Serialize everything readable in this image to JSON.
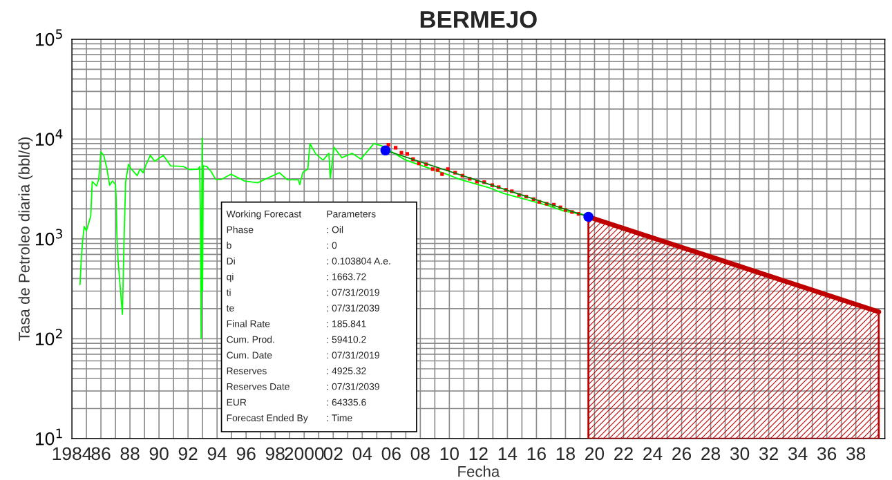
{
  "chart_data": {
    "type": "line",
    "title": "BERMEJO",
    "xlabel": "Fecha",
    "ylabel": "Tasa de Petroleo diaria (bbl/d)",
    "log": "y",
    "grid": true,
    "legend": false,
    "xlim": [
      1984,
      2040
    ],
    "ylim": [
      10,
      100000
    ],
    "xticks": [
      {
        "value": 1984,
        "label": "1984"
      },
      {
        "value": 1985,
        "label": null
      },
      {
        "value": 1986,
        "label": "86"
      },
      {
        "value": 1987,
        "label": null
      },
      {
        "value": 1988,
        "label": "88"
      },
      {
        "value": 1989,
        "label": null
      },
      {
        "value": 1990,
        "label": "90"
      },
      {
        "value": 1991,
        "label": null
      },
      {
        "value": 1992,
        "label": "92"
      },
      {
        "value": 1993,
        "label": null
      },
      {
        "value": 1994,
        "label": "94"
      },
      {
        "value": 1995,
        "label": null
      },
      {
        "value": 1996,
        "label": "96"
      },
      {
        "value": 1997,
        "label": null
      },
      {
        "value": 1998,
        "label": "98"
      },
      {
        "value": 1999,
        "label": null
      },
      {
        "value": 2000,
        "label": "2000"
      },
      {
        "value": 2001,
        "label": null
      },
      {
        "value": 2002,
        "label": "02"
      },
      {
        "value": 2003,
        "label": null
      },
      {
        "value": 2004,
        "label": "04"
      },
      {
        "value": 2005,
        "label": null
      },
      {
        "value": 2006,
        "label": "06"
      },
      {
        "value": 2007,
        "label": null
      },
      {
        "value": 2008,
        "label": "08"
      },
      {
        "value": 2009,
        "label": null
      },
      {
        "value": 2010,
        "label": "10"
      },
      {
        "value": 2011,
        "label": null
      },
      {
        "value": 2012,
        "label": "12"
      },
      {
        "value": 2013,
        "label": null
      },
      {
        "value": 2014,
        "label": "14"
      },
      {
        "value": 2015,
        "label": null
      },
      {
        "value": 2016,
        "label": "16"
      },
      {
        "value": 2017,
        "label": null
      },
      {
        "value": 2018,
        "label": "18"
      },
      {
        "value": 2019,
        "label": null
      },
      {
        "value": 2020,
        "label": "20"
      },
      {
        "value": 2021,
        "label": null
      },
      {
        "value": 2022,
        "label": "22"
      },
      {
        "value": 2023,
        "label": null
      },
      {
        "value": 2024,
        "label": "24"
      },
      {
        "value": 2025,
        "label": null
      },
      {
        "value": 2026,
        "label": "26"
      },
      {
        "value": 2027,
        "label": null
      },
      {
        "value": 2028,
        "label": "28"
      },
      {
        "value": 2029,
        "label": null
      },
      {
        "value": 2030,
        "label": "30"
      },
      {
        "value": 2031,
        "label": null
      },
      {
        "value": 2032,
        "label": "32"
      },
      {
        "value": 2033,
        "label": null
      },
      {
        "value": 2034,
        "label": "34"
      },
      {
        "value": 2035,
        "label": null
      },
      {
        "value": 2036,
        "label": "36"
      },
      {
        "value": 2037,
        "label": null
      },
      {
        "value": 2038,
        "label": "38"
      },
      {
        "value": 2039,
        "label": null
      }
    ],
    "yticks": [
      {
        "value": 10,
        "label": "10$^{1}$"
      },
      {
        "value": 20,
        "label": null
      },
      {
        "value": 30,
        "label": null
      },
      {
        "value": 40,
        "label": null
      },
      {
        "value": 50,
        "label": null
      },
      {
        "value": 60,
        "label": null
      },
      {
        "value": 70,
        "label": null
      },
      {
        "value": 80,
        "label": null
      },
      {
        "value": 90,
        "label": null
      },
      {
        "value": 100,
        "label": "10$^{2}$"
      },
      {
        "value": 200,
        "label": null
      },
      {
        "value": 300,
        "label": null
      },
      {
        "value": 400,
        "label": null
      },
      {
        "value": 500,
        "label": null
      },
      {
        "value": 600,
        "label": null
      },
      {
        "value": 700,
        "label": null
      },
      {
        "value": 800,
        "label": null
      },
      {
        "value": 900,
        "label": null
      },
      {
        "value": 1000,
        "label": "10$^{3}$"
      },
      {
        "value": 2000,
        "label": null
      },
      {
        "value": 3000,
        "label": null
      },
      {
        "value": 4000,
        "label": null
      },
      {
        "value": 5000,
        "label": null
      },
      {
        "value": 6000,
        "label": null
      },
      {
        "value": 7000,
        "label": null
      },
      {
        "value": 8000,
        "label": null
      },
      {
        "value": 9000,
        "label": null
      },
      {
        "value": 10000,
        "label": "10$^{4}$"
      },
      {
        "value": 20000,
        "label": null
      },
      {
        "value": 30000,
        "label": null
      },
      {
        "value": 40000,
        "label": null
      },
      {
        "value": 50000,
        "label": null
      },
      {
        "value": 60000,
        "label": null
      },
      {
        "value": 70000,
        "label": null
      },
      {
        "value": 80000,
        "label": null
      },
      {
        "value": 90000,
        "label": null
      },
      {
        "value": 100000,
        "label": "10$^{5}$"
      }
    ],
    "series": [
      {
        "color": "#00ff00",
        "marker": "none",
        "x": [
          1984.56,
          1984.65,
          1984.75,
          1984.85,
          1985.0,
          1985.3,
          1985.4,
          1985.7,
          1985.85,
          1986.0,
          1986.2,
          1986.4,
          1986.6,
          1986.8,
          1987.0,
          1987.05,
          1987.1,
          1987.18,
          1987.48,
          1987.6,
          1987.7,
          1987.9,
          1988.1,
          1988.5,
          1988.7,
          1988.9,
          1989.1,
          1989.4,
          1989.7,
          1990.3,
          1990.8,
          1991.7,
          1992.1,
          1992.7,
          1992.8,
          1992.85,
          1992.9,
          1992.97,
          1993.0,
          1993.05,
          1993.3,
          1993.6,
          1993.9,
          1994.3,
          1994.95,
          1995.9,
          1996.8,
          1997.45,
          1998.3,
          1998.85,
          1999.6,
          1999.7,
          1999.9,
          2000.25,
          2000.4,
          2000.8,
          2001.3,
          2001.7,
          2001.8,
          2002.05,
          2002.6,
          2003.3,
          2003.9,
          2004.8,
          2005.3,
          2007.0,
          2009.8,
          2010.75,
          2012.7,
          2013.75,
          2016.85,
          2017.9,
          2019.3
        ],
        "values": [
          349,
          650,
          985,
          1334,
          1200,
          1700,
          3750,
          3400,
          3940,
          7450,
          6800,
          5170,
          3440,
          3800,
          3500,
          2560,
          1100,
          610,
          176,
          1050,
          3700,
          5590,
          5000,
          4300,
          5000,
          4600,
          5500,
          6870,
          6000,
          6870,
          5400,
          5300,
          4950,
          5000,
          5300,
          2010,
          101,
          10200,
          300,
          5400,
          5300,
          4700,
          3950,
          3940,
          4450,
          3800,
          3650,
          4050,
          4600,
          3900,
          3900,
          3500,
          4600,
          5000,
          9000,
          7100,
          6150,
          7200,
          4050,
          8300,
          6500,
          7200,
          6300,
          9000,
          8600,
          6150,
          4450,
          3940,
          3270,
          2850,
          2150,
          1900,
          1750
        ]
      },
      {
        "type": "scatter",
        "color": "#ff0000",
        "marker": "square",
        "x": [
          2005.8,
          2006.3,
          2006.7,
          2007.1,
          2007.5,
          2007.9,
          2008.4,
          2008.85,
          2009.2,
          2009.5,
          2009.9,
          2010.4,
          2010.9,
          2011.4,
          2011.9,
          2012.4,
          2012.95,
          2013.4,
          2013.9,
          2014.3,
          2014.8,
          2015.3,
          2015.8,
          2016.2,
          2016.7,
          2017.2,
          2017.65,
          2018.0,
          2018.45,
          2018.9
        ],
        "values": [
          8760,
          8200,
          7300,
          7100,
          6300,
          5700,
          5600,
          5000,
          4900,
          4450,
          5000,
          4600,
          4300,
          4000,
          3750,
          3700,
          3450,
          3300,
          3100,
          3000,
          2760,
          2650,
          2500,
          2350,
          2250,
          2200,
          2070,
          1950,
          1860,
          1780
        ]
      },
      {
        "type": "line",
        "color": "#008000",
        "marker": "none",
        "x": [
          2005.6,
          2019.58
        ],
        "values": [
          7700,
          1663.72
        ]
      },
      {
        "type": "scatter",
        "color": "#0000ff",
        "marker": "circle",
        "x": [
          2005.6,
          2019.58
        ],
        "values": [
          7700,
          1663.72
        ]
      },
      {
        "type": "area",
        "color": "#c00000",
        "x": [
          2019.58,
          2039.58
        ],
        "values": [
          1663.72,
          185.841
        ]
      }
    ],
    "annotations": [
      "Working Forecast",
      "Parameters",
      "Phase",
      ": Oil",
      "b",
      ": 0",
      "Di",
      ": 0.103804 A.e.",
      "qi",
      ": 1663.72",
      "ti",
      ": 07/31/2019",
      "te",
      ": 07/31/2039",
      "Final Rate",
      ": 185.841",
      "Cum. Prod.",
      ": 59410.2",
      "Cum. Date",
      ": 07/31/2019",
      "Reserves",
      ": 4925.32",
      "Reserves Date",
      ": 07/31/2039",
      "EUR",
      ": 64335.6",
      "Forecast Ended By",
      ": Time"
    ]
  }
}
